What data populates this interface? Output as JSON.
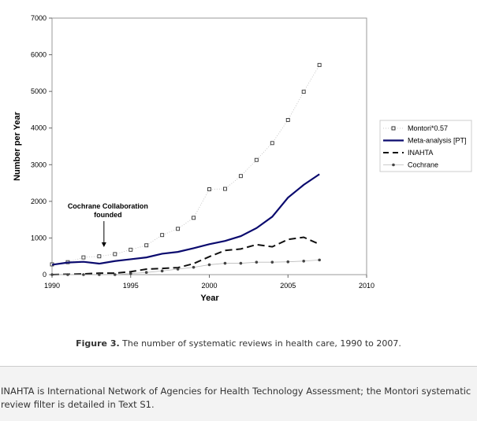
{
  "chart_data": {
    "type": "line",
    "title": "",
    "xlabel": "Year",
    "ylabel": "Number per Year",
    "xlim": [
      1990,
      2010
    ],
    "ylim": [
      0,
      7000
    ],
    "xticks": [
      1990,
      1995,
      2000,
      2005,
      2010
    ],
    "yticks": [
      0,
      1000,
      2000,
      3000,
      4000,
      5000,
      6000,
      7000
    ],
    "x": [
      1990,
      1991,
      1992,
      1993,
      1994,
      1995,
      1996,
      1997,
      1998,
      1999,
      2000,
      2001,
      2002,
      2003,
      2004,
      2005,
      2006,
      2007
    ],
    "series": [
      {
        "name": "Montori*0.57",
        "style": "dotted-square",
        "color": "#333333",
        "values": [
          280,
          340,
          470,
          500,
          560,
          680,
          800,
          1080,
          1250,
          1550,
          2330,
          2340,
          2690,
          3130,
          3590,
          4220,
          4990,
          5720
        ]
      },
      {
        "name": "Meta-analysis [PT]",
        "style": "solid",
        "color": "#0a0a6e",
        "values": [
          270,
          330,
          350,
          300,
          370,
          420,
          470,
          570,
          620,
          720,
          830,
          920,
          1050,
          1270,
          1580,
          2100,
          2450,
          2740
        ]
      },
      {
        "name": "INAHTA",
        "style": "dashed",
        "color": "#111111",
        "values": [
          0,
          10,
          20,
          40,
          40,
          80,
          150,
          170,
          190,
          300,
          490,
          660,
          700,
          820,
          760,
          960,
          1020,
          830
        ]
      },
      {
        "name": "Cochrane",
        "style": "dot-line",
        "color": "#444444",
        "values": [
          0,
          0,
          0,
          0,
          0,
          30,
          60,
          100,
          150,
          200,
          270,
          310,
          310,
          340,
          340,
          350,
          370,
          400
        ]
      }
    ],
    "annotation": {
      "line1": "Cochrane Collaboration",
      "line2": "founded",
      "x": 1993.3
    },
    "legend": "right"
  },
  "caption": {
    "label": "Figure 3.",
    "text": " The number of systematic reviews in health care, 1990 to 2007."
  },
  "footnote": "INAHTA is International Network of Agencies for Health Technology Assessment; the Montori systematic review filter is detailed in Text S1."
}
